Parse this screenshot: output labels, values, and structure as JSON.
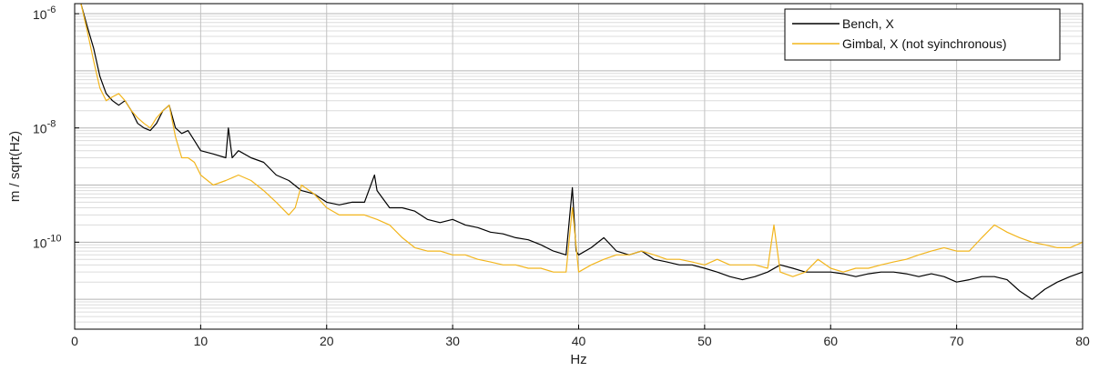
{
  "chart_data": {
    "type": "line",
    "xlabel": "Hz",
    "ylabel": "m / sqrt(Hz)",
    "xlim": [
      0,
      80
    ],
    "ylim": [
      3e-12,
      1.5e-06
    ],
    "yscale": "log",
    "grid": true,
    "legend_position": "top-right",
    "xticks": [
      0,
      10,
      20,
      30,
      40,
      50,
      60,
      70,
      80
    ],
    "xtick_labels": [
      "0",
      "10",
      "20",
      "30",
      "40",
      "50",
      "60",
      "70",
      "80"
    ],
    "yticks": [
      1e-10,
      1e-08,
      1e-06
    ],
    "ytick_labels": [
      {
        "base": "10",
        "exp": "-10"
      },
      {
        "base": "10",
        "exp": "-8"
      },
      {
        "base": "10",
        "exp": "-6"
      }
    ],
    "series": [
      {
        "name": "Bench, X",
        "color": "#000000",
        "x": [
          0.5,
          1,
          1.5,
          2,
          2.5,
          3,
          3.5,
          4,
          4.5,
          5,
          5.5,
          6,
          6.5,
          7,
          7.5,
          8,
          8.5,
          9,
          9.5,
          10,
          11,
          12,
          12.2,
          12.5,
          13,
          14,
          15,
          16,
          17,
          18,
          19,
          20,
          21,
          22,
          23,
          23.8,
          24,
          25,
          26,
          27,
          28,
          29,
          30,
          31,
          32,
          33,
          34,
          35,
          36,
          37,
          38,
          39,
          39.5,
          39.8,
          40,
          41,
          42,
          43,
          44,
          45,
          46,
          47,
          48,
          49,
          50,
          51,
          52,
          53,
          54,
          55,
          56,
          57,
          58,
          59,
          60,
          61,
          62,
          63,
          64,
          65,
          66,
          67,
          68,
          69,
          70,
          71,
          72,
          73,
          74,
          75,
          76,
          77,
          78,
          79,
          80
        ],
        "y": [
          1.5e-06,
          6e-07,
          2.5e-07,
          8e-08,
          4e-08,
          3e-08,
          2.5e-08,
          3e-08,
          2e-08,
          1.2e-08,
          1e-08,
          9e-09,
          1.2e-08,
          2e-08,
          2.5e-08,
          1e-08,
          8e-09,
          9e-09,
          6e-09,
          4e-09,
          3.5e-09,
          3e-09,
          1e-08,
          3e-09,
          4e-09,
          3e-09,
          2.5e-09,
          1.5e-09,
          1.2e-09,
          8e-10,
          7e-10,
          5e-10,
          4.5e-10,
          5e-10,
          5e-10,
          1.5e-09,
          8e-10,
          4e-10,
          4e-10,
          3.5e-10,
          2.5e-10,
          2.2e-10,
          2.5e-10,
          2e-10,
          1.8e-10,
          1.5e-10,
          1.4e-10,
          1.2e-10,
          1.1e-10,
          9e-11,
          7e-11,
          6e-11,
          9e-10,
          7e-11,
          6e-11,
          8e-11,
          1.2e-10,
          7e-11,
          6e-11,
          7e-11,
          5e-11,
          4.5e-11,
          4e-11,
          4e-11,
          3.5e-11,
          3e-11,
          2.5e-11,
          2.2e-11,
          2.5e-11,
          3e-11,
          4e-11,
          3.5e-11,
          3e-11,
          3e-11,
          3e-11,
          2.8e-11,
          2.5e-11,
          2.8e-11,
          3e-11,
          3e-11,
          2.8e-11,
          2.5e-11,
          2.8e-11,
          2.5e-11,
          2e-11,
          2.2e-11,
          2.5e-11,
          2.5e-11,
          2.2e-11,
          1.4e-11,
          1e-11,
          1.5e-11,
          2e-11,
          2.5e-11,
          3e-11
        ]
      },
      {
        "name": "Gimbal, X (not syinchronous)",
        "color": "#f2b51c",
        "x": [
          0.5,
          1,
          1.5,
          2,
          2.5,
          3,
          3.5,
          4,
          4.5,
          5,
          5.5,
          6,
          6.5,
          7,
          7.5,
          8,
          8.5,
          9,
          9.5,
          10,
          11,
          12,
          13,
          14,
          15,
          16,
          17,
          17.5,
          18,
          19,
          20,
          21,
          22,
          23,
          24,
          25,
          26,
          27,
          28,
          29,
          30,
          31,
          32,
          33,
          34,
          35,
          36,
          37,
          38,
          39,
          39.5,
          40,
          41,
          42,
          43,
          44,
          45,
          46,
          47,
          48,
          49,
          50,
          51,
          52,
          53,
          54,
          55,
          55.5,
          56,
          57,
          58,
          59,
          60,
          61,
          62,
          63,
          64,
          65,
          66,
          67,
          68,
          69,
          70,
          71,
          72,
          73,
          74,
          75,
          76,
          77,
          78,
          79,
          80
        ],
        "y": [
          1.5e-06,
          5e-07,
          1.5e-07,
          5e-08,
          3e-08,
          3.5e-08,
          4e-08,
          3e-08,
          2e-08,
          1.5e-08,
          1.2e-08,
          1e-08,
          1.5e-08,
          2e-08,
          2.5e-08,
          7e-09,
          3e-09,
          3e-09,
          2.5e-09,
          1.5e-09,
          1e-09,
          1.2e-09,
          1.5e-09,
          1.2e-09,
          8e-10,
          5e-10,
          3e-10,
          4e-10,
          1e-09,
          7e-10,
          4e-10,
          3e-10,
          3e-10,
          3e-10,
          2.5e-10,
          2e-10,
          1.2e-10,
          8e-11,
          7e-11,
          7e-11,
          6e-11,
          6e-11,
          5e-11,
          4.5e-11,
          4e-11,
          4e-11,
          3.5e-11,
          3.5e-11,
          3e-11,
          3e-11,
          4e-10,
          3e-11,
          4e-11,
          5e-11,
          6e-11,
          6e-11,
          7e-11,
          6e-11,
          5e-11,
          5e-11,
          4.5e-11,
          4e-11,
          5e-11,
          4e-11,
          4e-11,
          4e-11,
          3.5e-11,
          2e-10,
          3e-11,
          2.5e-11,
          3e-11,
          5e-11,
          3.5e-11,
          3e-11,
          3.5e-11,
          3.5e-11,
          4e-11,
          4.5e-11,
          5e-11,
          6e-11,
          7e-11,
          8e-11,
          7e-11,
          7e-11,
          1.2e-10,
          2e-10,
          1.5e-10,
          1.2e-10,
          1e-10,
          9e-11,
          8e-11,
          8e-11,
          1e-10
        ]
      }
    ]
  }
}
